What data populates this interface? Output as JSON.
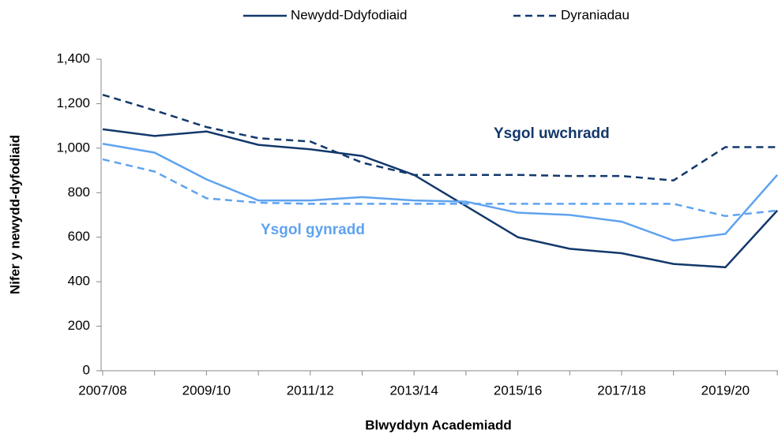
{
  "chart_data": {
    "type": "line",
    "x_label": "Blwyddyn Academiadd",
    "y_label": "Nifer y newydd-dyfodiaid",
    "categories": [
      "2007/08",
      null,
      "2009/10",
      null,
      "2011/12",
      null,
      "2013/14",
      null,
      "2015/16",
      null,
      "2017/18",
      null,
      "2019/20",
      null
    ],
    "ylim": [
      0,
      1400
    ],
    "yticks": [
      0,
      200,
      400,
      600,
      800,
      {
        "value": 1000,
        "label": "1,000"
      },
      {
        "value": 1200,
        "label": "1,200"
      },
      {
        "value": 1400,
        "label": "1,400"
      }
    ],
    "grid": false,
    "legend": [
      {
        "name": "Newydd-Ddyfodiaid",
        "dashed": false,
        "color": "#13386c"
      },
      {
        "name": "Dyraniadau",
        "dashed": true,
        "color": "#5fa3ef"
      }
    ],
    "series": [
      {
        "color": "#13386c",
        "dashed": false,
        "values": [
          1085,
          1055,
          1075,
          1015,
          995,
          965,
          880,
          740,
          600,
          548,
          528,
          480,
          465,
          720
        ]
      },
      {
        "color": "#13386c",
        "dashed": true,
        "values": [
          1240,
          1170,
          1095,
          1045,
          1030,
          935,
          880,
          880,
          880,
          875,
          875,
          855,
          1005,
          1005
        ]
      },
      {
        "color": "#5fa3ef",
        "dashed": false,
        "values": [
          1020,
          980,
          860,
          765,
          765,
          780,
          765,
          760,
          710,
          700,
          670,
          585,
          615,
          880
        ]
      },
      {
        "color": "#5fa3ef",
        "dashed": true,
        "values": [
          950,
          895,
          775,
          755,
          750,
          750,
          750,
          750,
          750,
          750,
          750,
          750,
          695,
          720
        ]
      }
    ],
    "annotations": [
      {
        "text": "Ysgol uwchradd",
        "color": "#13386c"
      },
      {
        "text": "Ysgol gynradd",
        "color": "#5fa3ef"
      }
    ]
  }
}
